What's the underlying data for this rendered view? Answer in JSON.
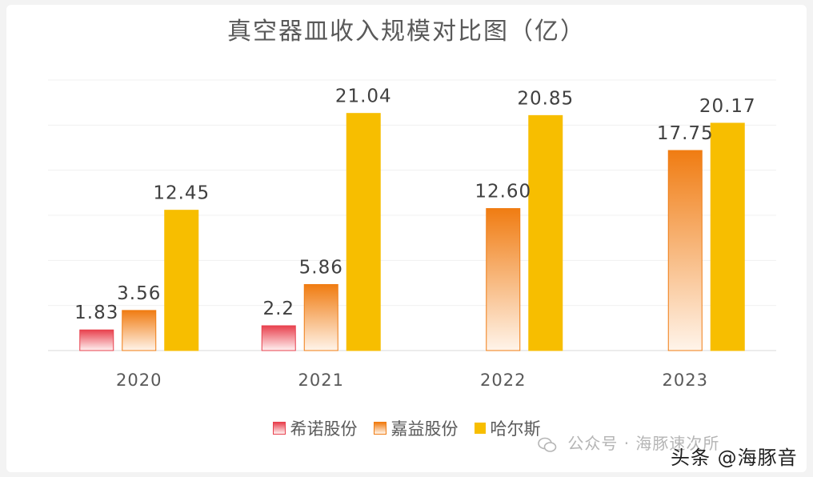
{
  "title": "真空器皿收入规模对比图（亿）",
  "colors": {
    "xinuo": "#e8414e",
    "jiayi": "#f07c12",
    "haers": "#f7be00"
  },
  "chart_data": {
    "type": "bar",
    "title": "真空器皿收入规模对比图（亿）",
    "categories": [
      "2020",
      "2021",
      "2022",
      "2023"
    ],
    "series": [
      {
        "name": "希诺股份",
        "values": [
          1.83,
          2.2,
          null,
          null
        ],
        "labels": [
          "1.83",
          "2.2",
          "",
          ""
        ]
      },
      {
        "name": "嘉益股份",
        "values": [
          3.56,
          5.86,
          12.6,
          17.75
        ],
        "labels": [
          "3.56",
          "5.86",
          "12.60",
          "17.75"
        ]
      },
      {
        "name": "哈尔斯",
        "values": [
          12.45,
          21.04,
          20.85,
          20.17
        ],
        "labels": [
          "12.45",
          "21.04",
          "20.85",
          "20.17"
        ]
      }
    ],
    "ylim": [
      0,
      24
    ],
    "grid": true,
    "legend": "bottom"
  },
  "legend": {
    "items": [
      "希诺股份",
      "嘉益股份",
      "哈尔斯"
    ]
  },
  "watermark": {
    "text": "公众号 · 海豚速次所",
    "icon": "wechat-icon"
  },
  "credit": "头条 @海豚音"
}
